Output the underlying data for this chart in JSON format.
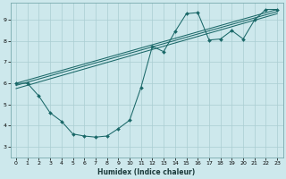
{
  "xlabel": "Humidex (Indice chaleur)",
  "xlim": [
    -0.5,
    23.5
  ],
  "ylim": [
    2.5,
    9.8
  ],
  "xticks": [
    0,
    1,
    2,
    3,
    4,
    5,
    6,
    7,
    8,
    9,
    10,
    11,
    12,
    13,
    14,
    15,
    16,
    17,
    18,
    19,
    20,
    21,
    22,
    23
  ],
  "yticks": [
    3,
    4,
    5,
    6,
    7,
    8,
    9
  ],
  "background_color": "#cde8ec",
  "line_color": "#1a6868",
  "grid_color": "#aacdd2",
  "zigzag": {
    "x": [
      0,
      1,
      2,
      3,
      4,
      5,
      6,
      7,
      8,
      9,
      10,
      11,
      12,
      13,
      14,
      15,
      16,
      17,
      18,
      19,
      20,
      21,
      22,
      23
    ],
    "y": [
      6.0,
      6.0,
      5.4,
      4.6,
      4.2,
      3.6,
      3.5,
      3.45,
      3.5,
      3.85,
      4.25,
      5.8,
      7.75,
      7.5,
      8.45,
      9.3,
      9.35,
      8.05,
      8.1,
      8.5,
      8.1,
      9.0,
      9.5,
      9.5
    ]
  },
  "straight_lines": [
    {
      "x": [
        0,
        23
      ],
      "y": [
        6.0,
        9.5
      ]
    },
    {
      "x": [
        0,
        23
      ],
      "y": [
        5.9,
        9.4
      ]
    },
    {
      "x": [
        0,
        23
      ],
      "y": [
        5.75,
        9.3
      ]
    }
  ]
}
